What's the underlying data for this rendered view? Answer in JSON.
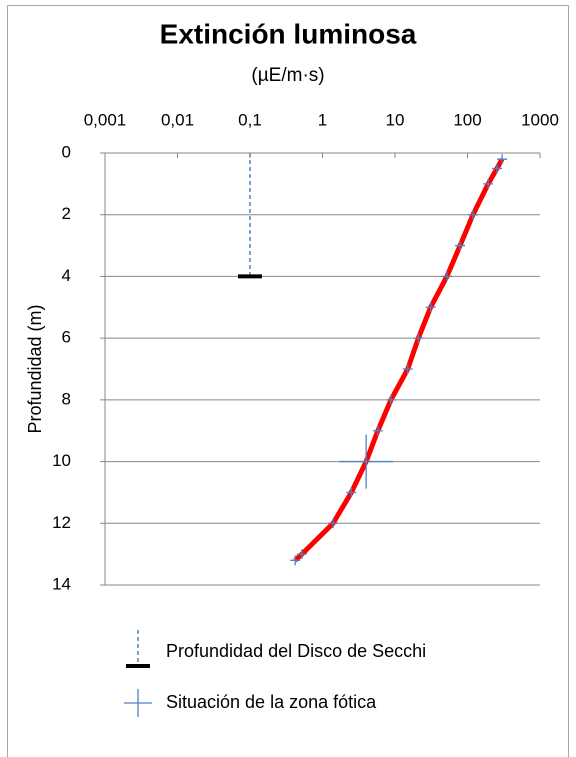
{
  "chart_data": {
    "type": "line",
    "title": "Extinción luminosa",
    "subtitle": "(µE/m·s)",
    "y_label": "Profundidad (m)",
    "x_log": true,
    "y_inverted": true,
    "xlim": [
      0.001,
      1000
    ],
    "xticks": [
      {
        "value": 0.001,
        "label": "0,001"
      },
      {
        "value": 0.01,
        "label": "0,01"
      },
      {
        "value": 0.1,
        "label": "0,1"
      },
      1,
      10,
      100,
      1000
    ],
    "ylim": [
      0,
      14
    ],
    "yticks": [
      0,
      2,
      4,
      6,
      8,
      10,
      12,
      14
    ],
    "grid": true,
    "curve": {
      "color": "#ff0000",
      "marker_color": "#4f81bd",
      "x": [
        300,
        255,
        193,
        119,
        79,
        52,
        31,
        21,
        15,
        8.8,
        5.8,
        4.0,
        2.5,
        1.4,
        0.52,
        0.42
      ],
      "y": [
        0.2,
        0.5,
        1,
        2,
        3,
        4,
        5,
        6,
        7,
        8,
        9,
        10,
        11,
        12,
        13,
        13.2
      ]
    },
    "series": [
      {
        "name": "Profundidad del Disco de Secchi",
        "color": "#4f81bd",
        "marker_color": "#000000",
        "x": [
          0.1,
          0.1
        ],
        "y": [
          0,
          4
        ]
      },
      {
        "name": "Situación de la zona fótica",
        "color": "#4f81bd",
        "x": [
          4.0
        ],
        "y": [
          10
        ]
      }
    ]
  }
}
